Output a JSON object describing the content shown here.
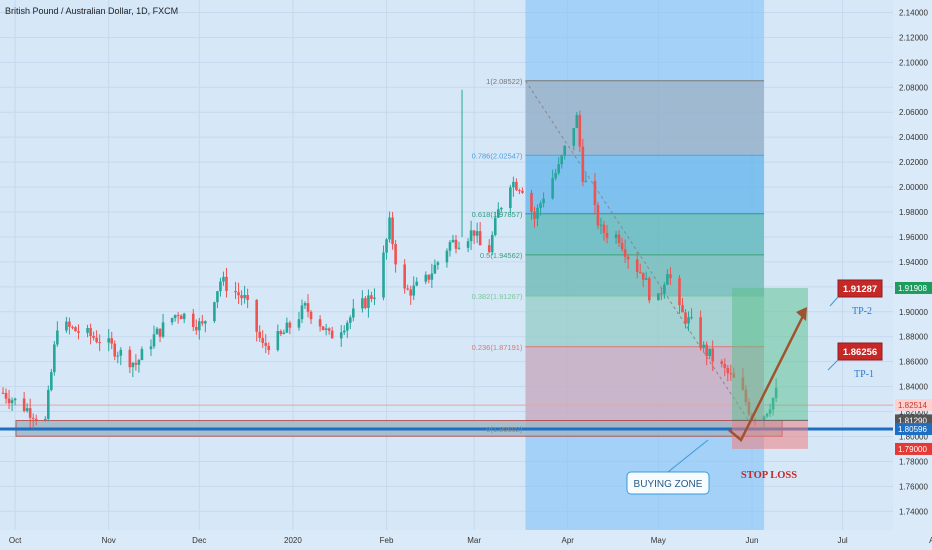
{
  "header": {
    "title": "British Pound / Australian Dollar, 1D, FXCM"
  },
  "chart_data": {
    "type": "candlestick",
    "symbol": "GBPAUD",
    "timeframe": "1D",
    "y_axis": {
      "ylim": [
        1.725,
        2.15
      ],
      "ticks": [
        "2.14000",
        "2.12000",
        "2.10000",
        "2.08000",
        "2.06000",
        "2.04000",
        "2.02000",
        "2.00000",
        "1.98000",
        "1.96000",
        "1.94000",
        "1.92000",
        "1.90000",
        "1.88000",
        "1.86000",
        "1.84000",
        "1.82000",
        "1.80000",
        "1.78000",
        "1.76000",
        "1.74000"
      ]
    },
    "x_axis": {
      "ticks": [
        {
          "label": "Oct",
          "day": 4
        },
        {
          "label": "Nov",
          "day": 35
        },
        {
          "label": "Dec",
          "day": 65
        },
        {
          "label": "2020",
          "day": 96
        },
        {
          "label": "Feb",
          "day": 127
        },
        {
          "label": "Mar",
          "day": 156
        },
        {
          "label": "Apr",
          "day": 187
        },
        {
          "label": "May",
          "day": 217
        },
        {
          "label": "Jun",
          "day": 248
        },
        {
          "label": "Jul",
          "day": 278
        },
        {
          "label": "Aug",
          "day": 309
        }
      ]
    },
    "price_path": [
      [
        0,
        1.835
      ],
      [
        8,
        1.822
      ],
      [
        14,
        1.812
      ],
      [
        18,
        1.89
      ],
      [
        24,
        1.885
      ],
      [
        32,
        1.878
      ],
      [
        40,
        1.865
      ],
      [
        44,
        1.858
      ],
      [
        50,
        1.88
      ],
      [
        58,
        1.9
      ],
      [
        66,
        1.888
      ],
      [
        72,
        1.925
      ],
      [
        80,
        1.91
      ],
      [
        86,
        1.872
      ],
      [
        92,
        1.88
      ],
      [
        100,
        1.903
      ],
      [
        104,
        1.895
      ],
      [
        108,
        1.88
      ],
      [
        112,
        1.888
      ],
      [
        118,
        1.903
      ],
      [
        124,
        1.918
      ],
      [
        128,
        1.97
      ],
      [
        132,
        1.915
      ],
      [
        136,
        1.918
      ],
      [
        140,
        1.925
      ],
      [
        148,
        1.955
      ],
      [
        152,
        1.958
      ],
      [
        156,
        1.965
      ],
      [
        160,
        1.94
      ],
      [
        164,
        1.98
      ],
      [
        168,
        2.005
      ],
      [
        172,
        2.0
      ],
      [
        176,
        1.975
      ],
      [
        180,
        2.0
      ],
      [
        184,
        2.015
      ],
      [
        188,
        2.045
      ],
      [
        190,
        2.055
      ],
      [
        192,
        2.01
      ],
      [
        198,
        1.965
      ],
      [
        204,
        1.96
      ],
      [
        208,
        1.94
      ],
      [
        212,
        1.93
      ],
      [
        216,
        1.9
      ],
      [
        220,
        1.935
      ],
      [
        224,
        1.9
      ],
      [
        228,
        1.89
      ],
      [
        232,
        1.87
      ],
      [
        236,
        1.86
      ],
      [
        240,
        1.85
      ],
      [
        244,
        1.84
      ],
      [
        248,
        1.816
      ],
      [
        252,
        1.818
      ],
      [
        256,
        1.835
      ],
      [
        258,
        1.823
      ]
    ],
    "fibonacci": [
      {
        "level": 1,
        "price": 2.08522,
        "label": "1(2.08522)"
      },
      {
        "level": 0.786,
        "price": 2.02547,
        "label": "0.786(2.02547)"
      },
      {
        "level": 0.618,
        "price": 1.97857,
        "label": "0.618(1.97857)"
      },
      {
        "level": 0.5,
        "price": 1.94562,
        "label": "0.5(1.94562)"
      },
      {
        "level": 0.382,
        "price": 1.91267,
        "label": "0.382(1.91267)"
      },
      {
        "level": 0.236,
        "price": 1.87191,
        "label": "0.236(1.87191)"
      },
      {
        "level": 0,
        "price": 1.80602,
        "label": "0(1.80602)"
      }
    ],
    "fib_range_days": [
      173,
      252
    ],
    "support_zone": {
      "from": 1.8002,
      "to": 1.8128
    },
    "position": {
      "entry": 1.8129,
      "stop": 1.79,
      "target": 1.91908
    },
    "price_labels": [
      {
        "text": "1.91908",
        "price": 1.91908,
        "color": "#1e9c60"
      },
      {
        "text": "1.82514",
        "price": 1.82514,
        "color": "#ffd0d0",
        "textColor": "#c0392b"
      },
      {
        "text": "1.81290",
        "price": 1.8129,
        "color": "#555555"
      },
      {
        "text": "1.80596",
        "price": 1.80596,
        "color": "#1e6fc4"
      },
      {
        "text": "1.79000",
        "price": 1.79,
        "color": "#e53935"
      }
    ],
    "annotations": {
      "buying_zone": "BUYING ZONE",
      "stop_loss": "STOP LOSS",
      "tp1_box": "1.86256",
      "tp1_label": "TP-1",
      "tp2_box": "1.91287",
      "tp2_label": "TP-2"
    },
    "colors": {
      "up": "#26a69a",
      "down": "#ef5350",
      "support_line": "#1e6fc4",
      "arrow": "#a0522d"
    }
  }
}
